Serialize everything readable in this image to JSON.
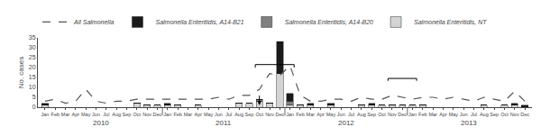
{
  "chart_data": {
    "type": "bar",
    "stacked": true,
    "grid": false,
    "y_label": "No. cases",
    "categories": [
      [
        "2010",
        "Jan"
      ],
      [
        "2010",
        "Feb"
      ],
      [
        "2010",
        "Mar"
      ],
      [
        "2010",
        "Apr"
      ],
      [
        "2010",
        "May"
      ],
      [
        "2010",
        "Jun"
      ],
      [
        "2010",
        "Jul"
      ],
      [
        "2010",
        "Aug"
      ],
      [
        "2010",
        "Sep"
      ],
      [
        "2010",
        "Oct"
      ],
      [
        "2010",
        "Nov"
      ],
      [
        "2010",
        "Dec"
      ],
      [
        "2011",
        "Jan"
      ],
      [
        "2011",
        "Feb"
      ],
      [
        "2011",
        "Mar"
      ],
      [
        "2011",
        "Apr"
      ],
      [
        "2011",
        "May"
      ],
      [
        "2011",
        "Jun"
      ],
      [
        "2011",
        "Jul"
      ],
      [
        "2011",
        "Aug"
      ],
      [
        "2011",
        "Sep"
      ],
      [
        "2011",
        "Oct"
      ],
      [
        "2011",
        "Nov"
      ],
      [
        "2011",
        "Dec"
      ],
      [
        "2012",
        "Jan"
      ],
      [
        "2012",
        "Feb"
      ],
      [
        "2012",
        "Mar"
      ],
      [
        "2012",
        "Apr"
      ],
      [
        "2012",
        "May"
      ],
      [
        "2012",
        "Jun"
      ],
      [
        "2012",
        "Jul"
      ],
      [
        "2012",
        "Aug"
      ],
      [
        "2012",
        "Sep"
      ],
      [
        "2012",
        "Oct"
      ],
      [
        "2012",
        "Nov"
      ],
      [
        "2012",
        "Dec"
      ],
      [
        "2013",
        "Jan"
      ],
      [
        "2013",
        "Feb"
      ],
      [
        "2013",
        "Mar"
      ],
      [
        "2013",
        "Apr"
      ],
      [
        "2013",
        "May"
      ],
      [
        "2013",
        "Jun"
      ],
      [
        "2013",
        "Jul"
      ],
      [
        "2013",
        "Aug"
      ],
      [
        "2013",
        "Sep"
      ],
      [
        "2013",
        "Oct"
      ],
      [
        "2013",
        "Nov"
      ],
      [
        "2013",
        "Dec"
      ]
    ],
    "series": [
      {
        "name": "Salmonella Enteritidis, NT",
        "color": "#d3d3d3",
        "values": [
          1,
          0,
          0,
          0,
          0,
          0,
          0,
          0,
          0,
          2,
          1,
          1,
          1,
          1,
          0,
          1,
          0,
          0,
          0,
          2,
          2,
          3,
          2,
          17,
          1,
          1,
          1,
          0,
          1,
          0,
          0,
          1,
          1,
          1,
          1,
          1,
          1,
          1,
          0,
          0,
          0,
          0,
          0,
          1,
          0,
          1,
          1,
          0
        ]
      },
      {
        "name": "Salmonella Enteritidis, A14-B20",
        "color": "#808080",
        "values": [
          0,
          0,
          0,
          0,
          0,
          0,
          0,
          0,
          0,
          0,
          0,
          0,
          0,
          0,
          0,
          0,
          0,
          0,
          0,
          0,
          0,
          1,
          0,
          0,
          2,
          0,
          0,
          0,
          0,
          0,
          0,
          0,
          0,
          0,
          0,
          0,
          0,
          0,
          0,
          0,
          0,
          0,
          0,
          0,
          0,
          0,
          0,
          0
        ]
      },
      {
        "name": "Salmonella Enteritidis, A14-B21",
        "color": "#1a1a1a",
        "values": [
          1,
          0,
          0,
          0,
          0,
          0,
          0,
          0,
          0,
          0,
          0,
          0,
          1,
          0,
          0,
          0,
          0,
          0,
          0,
          0,
          0,
          0,
          0,
          16,
          4,
          0,
          1,
          0,
          1,
          0,
          0,
          0,
          1,
          0,
          0,
          0,
          0,
          0,
          0,
          0,
          0,
          0,
          0,
          0,
          0,
          0,
          1,
          1
        ]
      },
      {
        "name": "All Salmonella",
        "type": "line",
        "line_style": "dashed",
        "color": "#555555",
        "values": [
          3,
          4,
          2,
          3,
          9,
          3,
          2,
          3,
          3,
          4,
          4,
          4,
          4,
          4,
          4,
          4,
          4,
          5,
          4,
          6,
          6,
          9,
          17,
          16,
          21,
          6,
          3,
          3,
          4,
          4,
          3,
          5,
          4,
          4,
          6,
          5,
          4,
          5,
          5,
          4,
          5,
          4,
          3,
          5,
          4,
          3,
          8,
          3
        ]
      }
    ],
    "ylim": [
      0,
      35
    ],
    "yticks": [
      0,
      5,
      10,
      15,
      20,
      25,
      30,
      35
    ],
    "annotations": [
      {
        "type": "arrow",
        "x": [
          "2011",
          "Oct"
        ],
        "y": 1.0,
        "y_from": 6.5
      },
      {
        "type": "bracket",
        "x": [
          [
            "2011",
            "Oct"
          ],
          [
            "2012",
            "Jan"
          ]
        ],
        "y": 21.5,
        "arm": 1.5
      },
      {
        "type": "bracket",
        "x": [
          [
            "2012",
            "Nov"
          ],
          [
            "2013",
            "Jan"
          ]
        ],
        "y": 14.5,
        "arm": 1.2
      }
    ]
  }
}
